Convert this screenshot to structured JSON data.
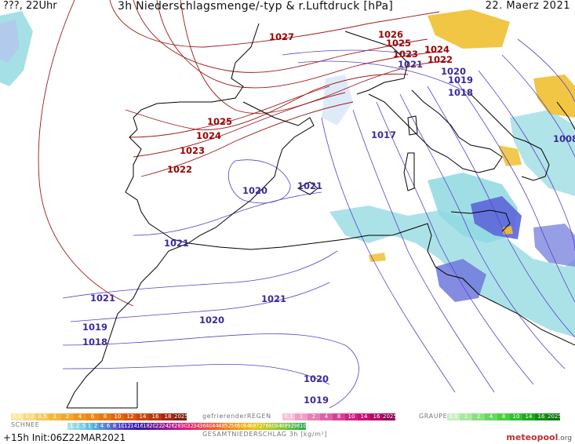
{
  "header": {
    "left": "???, 22Uhr",
    "title": "3h Niederschlagsmenge/-typ & r.Luftdruck [hPa]",
    "date": "22. Maerz 2021"
  },
  "isobar_labels": {
    "red": [
      "1027",
      "1026",
      "1025",
      "1024",
      "1023",
      "1022",
      "1025",
      "1024",
      "1023",
      "1022"
    ],
    "blue": [
      "1021",
      "1020",
      "1019",
      "1018",
      "1017",
      "1008",
      "1021",
      "1020",
      "1021",
      "1021",
      "1020",
      "1019",
      "1018",
      "1021",
      "1020",
      "1019"
    ]
  },
  "legend": {
    "snow_label": "SCHNEE",
    "snow_values": [
      "0.1",
      "0.2",
      "0.5",
      "1",
      "2",
      "4",
      "6",
      "8",
      "10",
      "12",
      "14",
      "16",
      "18",
      "2025+"
    ],
    "freezing_rain_label": "gefrierenderREGEN",
    "freezing_rain_values": [
      "0.1",
      "1",
      "2",
      "4",
      "8",
      "10",
      "14",
      "16",
      "2025+"
    ],
    "graupel_label": "GRAUPEL",
    "graupel_values": [
      "0.1",
      "1",
      "2",
      "4",
      "8",
      "10",
      "14",
      "16",
      "2025+"
    ],
    "total_label": "GESAMTNIEDERSCHLAG 3h [kg/m²]",
    "total_values": [
      ".1",
      ".2",
      ".5",
      "1",
      "2",
      "4",
      "6",
      "8",
      "10",
      "12",
      "14",
      "16",
      "18",
      "20",
      "22",
      "24",
      "26",
      "28",
      "30",
      "32",
      "34",
      "36",
      "40",
      "44",
      "48",
      "52",
      "56",
      "60",
      "64",
      "68",
      "72",
      "76",
      "80",
      "84",
      "88",
      "92",
      "96",
      "100"
    ]
  },
  "footer": {
    "run": "+15h Init:06Z22MAR2021",
    "logo": "meteopool",
    "logo_suffix": ".org"
  },
  "colors": {
    "isobar_high": "#a01818",
    "isobar_low": "#5a40c8",
    "rain": "#8fd8e0",
    "rain_heavy": "#4f5bd8",
    "snow": "#f0c030",
    "coast": "#000000"
  }
}
